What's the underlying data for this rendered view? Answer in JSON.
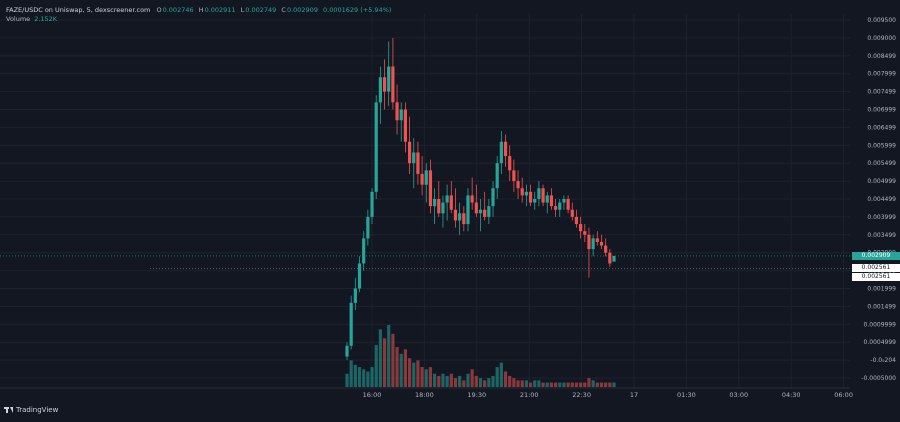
{
  "header": {
    "title": "FAZE/USDC on Uniswap, 5, dexscreener.com",
    "ohlc": [
      {
        "key": "O",
        "value": "0.002746"
      },
      {
        "key": "H",
        "value": "0.002911"
      },
      {
        "key": "L",
        "value": "0.002749"
      },
      {
        "key": "C",
        "value": "0.002909"
      }
    ],
    "change": "0.0001629 (+5.94%)",
    "volume_label": "Volume",
    "volume_value": "2.152K"
  },
  "price_tags": {
    "last": "0.002909",
    "level_a": "0.002561",
    "level_b": "0.002561"
  },
  "brand": "TradingView",
  "colors": {
    "background": "#131722",
    "up": "#26a69a",
    "down": "#ef5350",
    "grid": "#1e222d",
    "text": "#b2b5be"
  },
  "chart_data": {
    "type": "candlestick",
    "y_ticks": [
      "0.009500",
      "0.009000",
      "0.008499",
      "0.007999",
      "0.007499",
      "0.006999",
      "0.006499",
      "0.005999",
      "0.005499",
      "0.004999",
      "0.004499",
      "0.003999",
      "0.003499",
      "0.002999",
      "0.002499",
      "0.001999",
      "0.001499",
      "0.0009999",
      "0.0004999",
      "-0.0<sub>5</sub>204",
      "-0.0005000"
    ],
    "y_ticks_display": [
      "0.009500",
      "0.009000",
      "0.008499",
      "0.007999",
      "0.007499",
      "0.006999",
      "0.006499",
      "0.005999",
      "0.005499",
      "0.004999",
      "0.004499",
      "0.003999",
      "0.003499",
      "0.002999",
      "0.002499",
      "0.001999",
      "0.001499",
      "0.0009999",
      "0.0004999",
      "-0.0₅204",
      "-0.0005000"
    ],
    "y_range": [
      -0.0005,
      0.0095
    ],
    "x_ticks": [
      "16:00",
      "18:00",
      "19:30",
      "21:00",
      "22:30",
      "17",
      "01:30",
      "03:00",
      "04:30",
      "06:00"
    ],
    "candles": [
      [
        0.0001,
        0.0005,
        0.0,
        0.0004
      ],
      [
        0.0004,
        0.0018,
        0.0003,
        0.0016
      ],
      [
        0.0016,
        0.0023,
        0.0014,
        0.002
      ],
      [
        0.002,
        0.0029,
        0.0019,
        0.0027
      ],
      [
        0.0027,
        0.0036,
        0.0025,
        0.0034
      ],
      [
        0.0034,
        0.0042,
        0.0032,
        0.004
      ],
      [
        0.004,
        0.0048,
        0.0038,
        0.0047
      ],
      [
        0.0047,
        0.0074,
        0.0045,
        0.0072
      ],
      [
        0.0072,
        0.0082,
        0.0066,
        0.0079
      ],
      [
        0.0079,
        0.0084,
        0.007,
        0.0075
      ],
      [
        0.0075,
        0.0089,
        0.0071,
        0.0082
      ],
      [
        0.0082,
        0.009,
        0.007,
        0.0072
      ],
      [
        0.0072,
        0.0077,
        0.0063,
        0.0067
      ],
      [
        0.0067,
        0.0072,
        0.0061,
        0.007
      ],
      [
        0.007,
        0.0072,
        0.0058,
        0.0061
      ],
      [
        0.0061,
        0.0068,
        0.0052,
        0.0055
      ],
      [
        0.0055,
        0.0062,
        0.0048,
        0.0058
      ],
      [
        0.0058,
        0.0061,
        0.0049,
        0.0052
      ],
      [
        0.0052,
        0.0057,
        0.0046,
        0.0049
      ],
      [
        0.0049,
        0.0055,
        0.0044,
        0.0053
      ],
      [
        0.0053,
        0.0056,
        0.0041,
        0.0043
      ],
      [
        0.0043,
        0.0048,
        0.0038,
        0.0045
      ],
      [
        0.0045,
        0.005,
        0.004,
        0.0041
      ],
      [
        0.0041,
        0.0046,
        0.0037,
        0.0044
      ],
      [
        0.0044,
        0.0049,
        0.0039,
        0.0046
      ],
      [
        0.0046,
        0.005,
        0.0041,
        0.0042
      ],
      [
        0.0042,
        0.0048,
        0.0037,
        0.0039
      ],
      [
        0.0039,
        0.0044,
        0.0035,
        0.0041
      ],
      [
        0.0041,
        0.0043,
        0.0036,
        0.0038
      ],
      [
        0.0038,
        0.0048,
        0.0036,
        0.0046
      ],
      [
        0.0046,
        0.0051,
        0.0042,
        0.0044
      ],
      [
        0.0044,
        0.0049,
        0.004,
        0.0041
      ],
      [
        0.0041,
        0.0045,
        0.0036,
        0.0042
      ],
      [
        0.0042,
        0.0047,
        0.0039,
        0.004
      ],
      [
        0.004,
        0.0045,
        0.0038,
        0.0043
      ],
      [
        0.0043,
        0.005,
        0.004,
        0.0048
      ],
      [
        0.0048,
        0.0057,
        0.0045,
        0.0055
      ],
      [
        0.0055,
        0.0064,
        0.0052,
        0.0061
      ],
      [
        0.0061,
        0.0063,
        0.0054,
        0.0057
      ],
      [
        0.0057,
        0.006,
        0.005,
        0.0053
      ],
      [
        0.0053,
        0.0056,
        0.0047,
        0.005
      ],
      [
        0.005,
        0.0053,
        0.0045,
        0.0048
      ],
      [
        0.0048,
        0.0051,
        0.0044,
        0.0046
      ],
      [
        0.0046,
        0.0049,
        0.0043,
        0.0047
      ],
      [
        0.0047,
        0.0049,
        0.0043,
        0.0044
      ],
      [
        0.0044,
        0.0047,
        0.0042,
        0.0045
      ],
      [
        0.0045,
        0.005,
        0.0043,
        0.0048
      ],
      [
        0.0048,
        0.0049,
        0.0043,
        0.0044
      ],
      [
        0.0044,
        0.0047,
        0.0041,
        0.0046
      ],
      [
        0.0046,
        0.0048,
        0.0042,
        0.0043
      ],
      [
        0.0043,
        0.0045,
        0.004,
        0.0042
      ],
      [
        0.0042,
        0.0045,
        0.004,
        0.0044
      ],
      [
        0.0044,
        0.0046,
        0.0042,
        0.0045
      ],
      [
        0.0045,
        0.0046,
        0.0041,
        0.0042
      ],
      [
        0.0042,
        0.0044,
        0.0039,
        0.004
      ],
      [
        0.004,
        0.0042,
        0.0037,
        0.0038
      ],
      [
        0.0038,
        0.004,
        0.0034,
        0.0036
      ],
      [
        0.0036,
        0.0038,
        0.0033,
        0.0035
      ],
      [
        0.0035,
        0.0037,
        0.0023,
        0.0031
      ],
      [
        0.0031,
        0.0035,
        0.0029,
        0.0034
      ],
      [
        0.0034,
        0.0036,
        0.0032,
        0.0033
      ],
      [
        0.0033,
        0.0035,
        0.0031,
        0.0032
      ],
      [
        0.0032,
        0.0034,
        0.0029,
        0.003
      ],
      [
        0.003,
        0.0031,
        0.0026,
        0.0027
      ],
      [
        0.00275,
        0.00291,
        0.00275,
        0.00291
      ]
    ],
    "volumes": [
      0.6,
      1.2,
      1.0,
      0.9,
      0.8,
      0.7,
      0.9,
      1.9,
      2.6,
      2.2,
      2.8,
      2.4,
      1.8,
      1.5,
      1.7,
      1.3,
      1.1,
      1.2,
      0.9,
      0.8,
      0.9,
      0.6,
      0.5,
      0.6,
      0.5,
      0.6,
      0.4,
      0.5,
      0.3,
      0.6,
      0.8,
      0.5,
      0.4,
      0.3,
      0.4,
      0.5,
      0.9,
      1.1,
      0.7,
      0.5,
      0.4,
      0.3,
      0.3,
      0.3,
      0.2,
      0.3,
      0.3,
      0.2,
      0.2,
      0.2,
      0.2,
      0.2,
      0.2,
      0.2,
      0.2,
      0.2,
      0.2,
      0.2,
      0.4,
      0.3,
      0.2,
      0.2,
      0.2,
      0.2,
      0.2
    ],
    "price_line": 0.002909,
    "horizontal_line": 0.002561
  }
}
